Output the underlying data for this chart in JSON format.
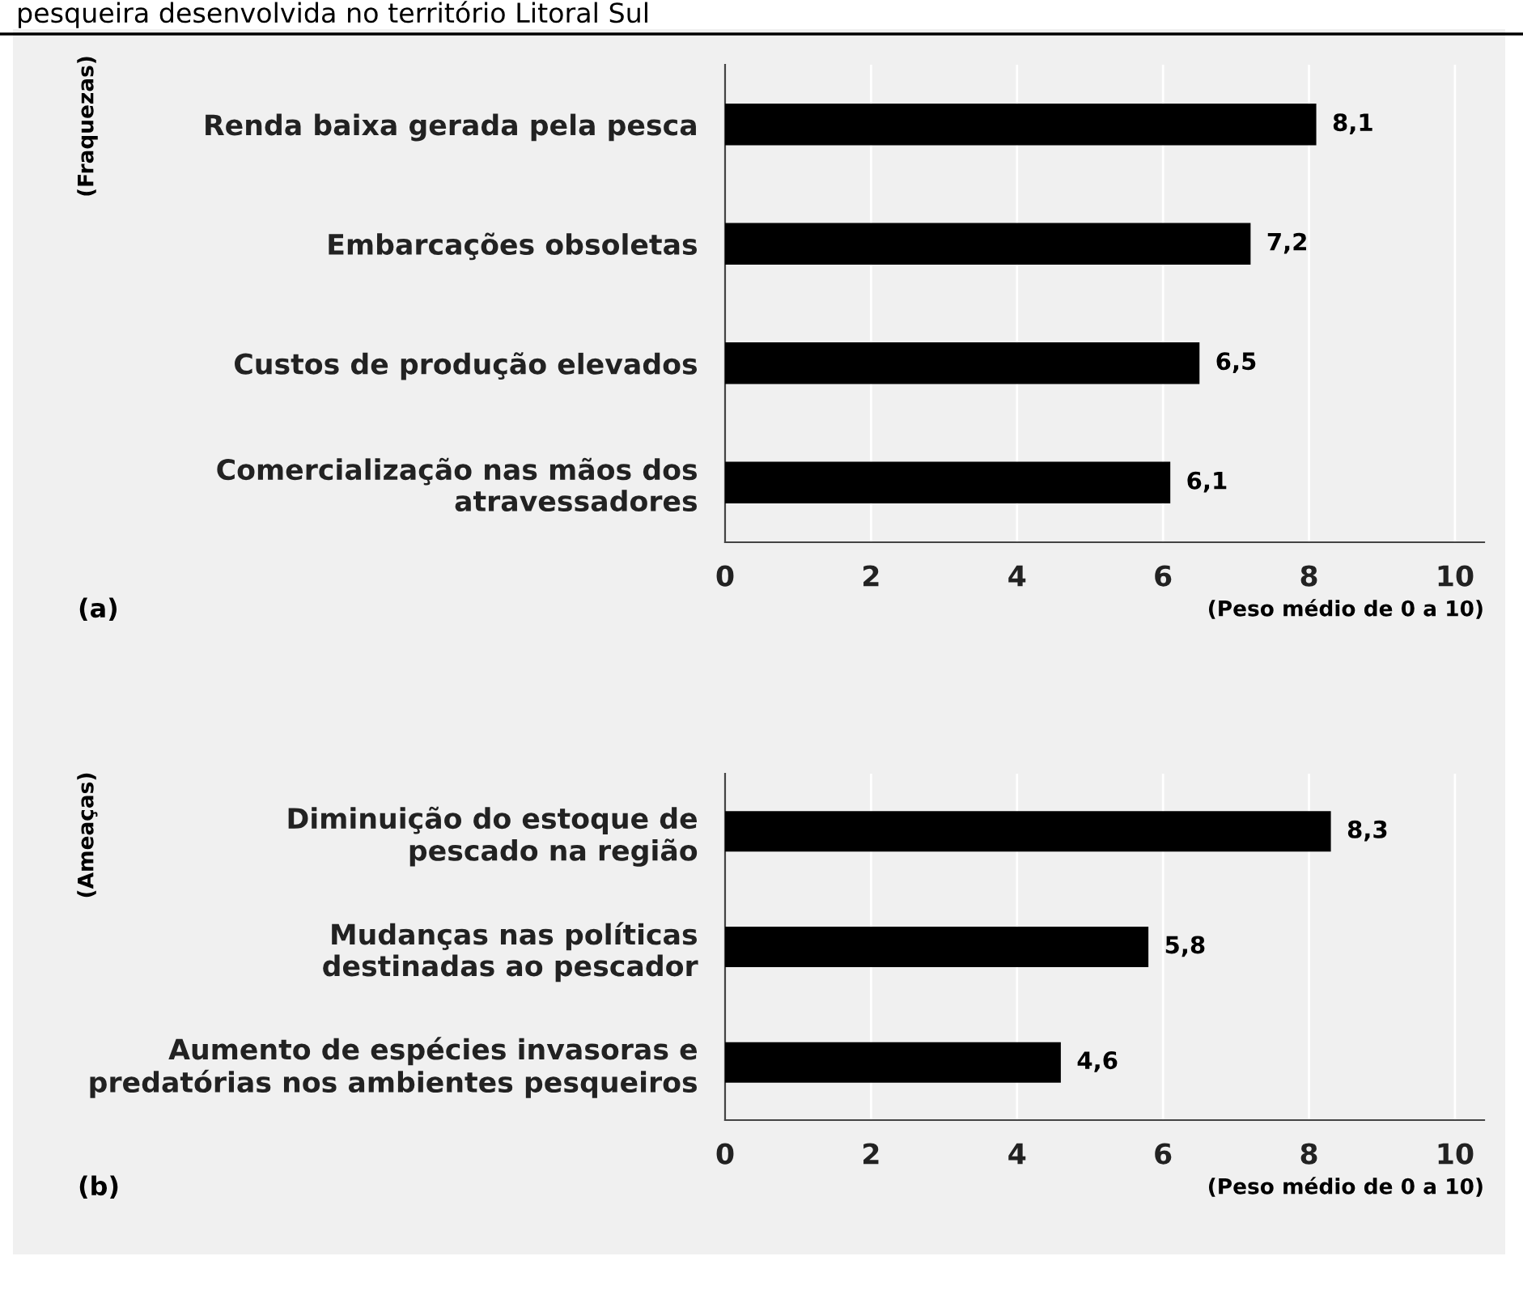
{
  "chart_data": [
    {
      "type": "bar",
      "orientation": "horizontal",
      "title": "pesqueira desenvolvida no território Litoral Sul",
      "ylabel": "(Fraquezas)",
      "xlabel": "(Peso médio de 0 a 10)",
      "annotations": [
        "(a)"
      ],
      "categories": [
        "Renda baixa gerada pela pesca",
        "Embarcações obsoletas",
        "Custos de produção elevados",
        "Comercialização nas mãos dos\natravessadores"
      ],
      "values": [
        8.1,
        7.2,
        6.5,
        6.1
      ],
      "value_labels": [
        "8,1",
        "7,2",
        "6,5",
        "6,1"
      ],
      "color": "#000000",
      "xlim": [
        0,
        10.4
      ],
      "xticks": [
        0,
        2,
        4,
        6,
        8,
        10
      ],
      "grid": "x",
      "legend": false
    },
    {
      "type": "bar",
      "orientation": "horizontal",
      "ylabel": "(Ameaças)",
      "xlabel": "(Peso médio de 0 a 10)",
      "annotations": [
        "(b)"
      ],
      "categories": [
        "Diminuição do estoque de\npescado na região",
        "Mudanças nas políticas\ndestinadas ao pescador",
        "Aumento de espécies invasoras e\npredatórias nos ambientes pesqueiros"
      ],
      "values": [
        8.3,
        5.8,
        4.6
      ],
      "value_labels": [
        "8,3",
        "5,8",
        "4,6"
      ],
      "color": "#000000",
      "xlim": [
        0,
        10.4
      ],
      "xticks": [
        0,
        2,
        4,
        6,
        8,
        10
      ],
      "grid": "x",
      "legend": false
    }
  ]
}
